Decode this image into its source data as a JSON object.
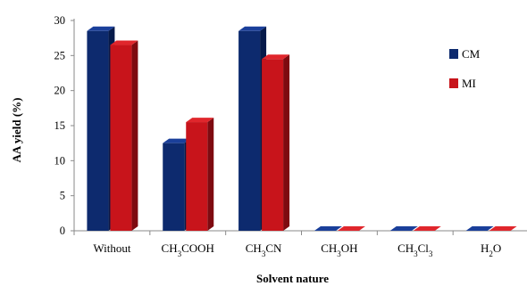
{
  "chart_data": {
    "type": "bar",
    "title": "",
    "xlabel": "Solvent nature",
    "ylabel": "AA yield (%)",
    "ylim": [
      0,
      30
    ],
    "yticks": [
      0,
      5,
      10,
      15,
      20,
      25,
      30
    ],
    "categories": [
      "Without",
      "CH3COOH",
      "CH3CN",
      "CH3OH",
      "CH3Cl3",
      "H2O"
    ],
    "category_labels": [
      [
        {
          "t": "Without"
        }
      ],
      [
        {
          "t": "CH"
        },
        {
          "t": "3",
          "sub": true
        },
        {
          "t": "COOH"
        }
      ],
      [
        {
          "t": "CH"
        },
        {
          "t": "3",
          "sub": true
        },
        {
          "t": "CN"
        }
      ],
      [
        {
          "t": "CH"
        },
        {
          "t": "3",
          "sub": true
        },
        {
          "t": "OH"
        }
      ],
      [
        {
          "t": "CH"
        },
        {
          "t": "3",
          "sub": true
        },
        {
          "t": "Cl"
        },
        {
          "t": "3",
          "sub": true
        }
      ],
      [
        {
          "t": "H"
        },
        {
          "t": "2",
          "sub": true
        },
        {
          "t": "O"
        }
      ]
    ],
    "series": [
      {
        "name": "CM",
        "values": [
          28.5,
          12.5,
          28.5,
          0,
          0,
          0
        ],
        "color": "#0d2a6e",
        "top_color": "#1a3f9a",
        "side_color": "#061a4a"
      },
      {
        "name": "MI",
        "values": [
          26.5,
          15.5,
          24.5,
          0,
          0,
          0
        ],
        "color": "#c8141b",
        "top_color": "#e0262c",
        "side_color": "#7e0a10"
      }
    ],
    "legend_position": "right",
    "grid": false,
    "style": "3d-bar"
  }
}
